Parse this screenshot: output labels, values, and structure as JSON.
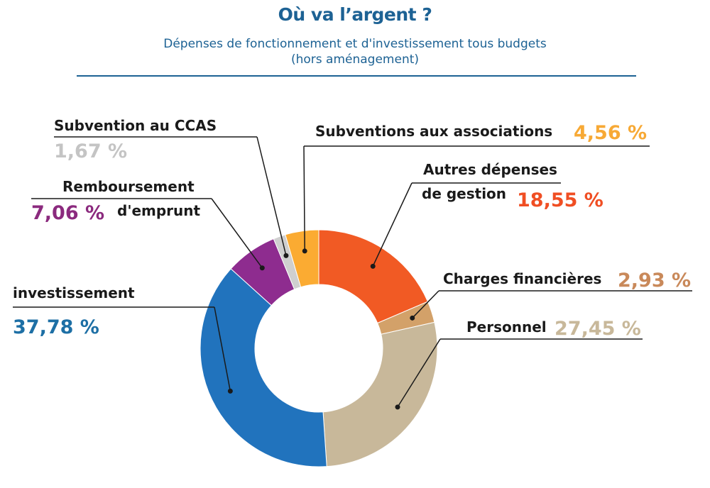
{
  "header": {
    "title": "Où va l’argent ?",
    "subtitle_line1": "Dépenses de fonctionnement et d'investissement tous budgets",
    "subtitle_line2": "(hors aménagement)"
  },
  "chart_data": {
    "type": "pie",
    "variant": "donut",
    "title": "Où va l’argent ?",
    "subtitle": "Dépenses de fonctionnement et d'investissement tous budgets (hors aménagement)",
    "start_angle_deg": 0,
    "direction": "clockwise",
    "slices": [
      {
        "name": "Autres dépenses de gestion",
        "label_lines": [
          "Autres dépenses",
          "de gestion"
        ],
        "value": 18.55,
        "pct_label": "18,55 %",
        "color": "#f15a24",
        "label_color": "#f04e23"
      },
      {
        "name": "Charges financières",
        "label_lines": [
          "Charges financières"
        ],
        "value": 2.93,
        "pct_label": "2,93 %",
        "color": "#d3a169",
        "label_color": "#c9895a"
      },
      {
        "name": "Personnel",
        "label_lines": [
          "Personnel"
        ],
        "value": 27.45,
        "pct_label": "27,45 %",
        "color": "#c8b89a",
        "label_color": "#c8b89a"
      },
      {
        "name": "investissement",
        "label_lines": [
          "investissement"
        ],
        "value": 37.78,
        "pct_label": "37,78 %",
        "color": "#2173bd",
        "label_color": "#1d6fa5"
      },
      {
        "name": "Remboursement d'emprunt",
        "label_lines": [
          "Remboursement",
          "d'emprunt"
        ],
        "value": 7.06,
        "pct_label": "7,06 %",
        "color": "#8e2c8f",
        "label_color": "#8b2a7e"
      },
      {
        "name": "Subvention au CCAS",
        "label_lines": [
          "Subvention au CCAS"
        ],
        "value": 1.67,
        "pct_label": "1,67 %",
        "color": "#cfcfcf",
        "label_color": "#c4c4c4"
      },
      {
        "name": "Subventions aux associations",
        "label_lines": [
          "Subventions aux associations"
        ],
        "value": 4.56,
        "pct_label": "4,56 %",
        "color": "#fbab32",
        "label_color": "#f7a935"
      }
    ]
  }
}
